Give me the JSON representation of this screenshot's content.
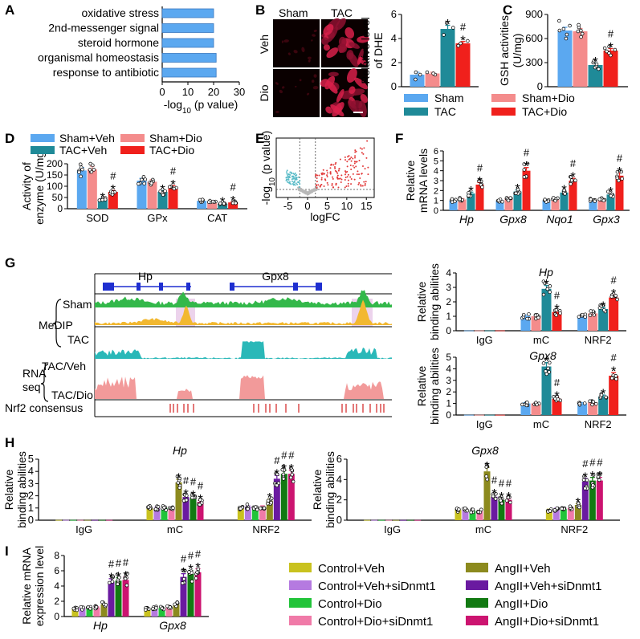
{
  "colors": {
    "sham": "#5ba8f0",
    "tac": "#1f8a98",
    "sham_dio": "#f48c8c",
    "tac_dio": "#f0201c",
    "ctrl_veh": "#c9c21f",
    "ctrl_veh_si": "#b57ae0",
    "ctrl_dio": "#22c43a",
    "ctrl_dio_si": "#f07aa8",
    "ang_veh": "#8c8a1e",
    "ang_veh_si": "#6a1aa0",
    "ang_dio": "#127a12",
    "ang_dio_si": "#cc1470",
    "medip_sham": "#33b84a",
    "medip_tac": "#f2b830",
    "rna_veh": "#2ab8b8",
    "rna_dio": "#f29a9a",
    "nrf2": "#d22020",
    "gene": "#1f2fd0",
    "highlight": "#ecd3ec"
  },
  "panels": {
    "A": "A",
    "B": "B",
    "C": "C",
    "D": "D",
    "E": "E",
    "F": "F",
    "G": "G",
    "H": "H",
    "I": "I"
  },
  "sig": {
    "star": "*",
    "hash": "#"
  },
  "chart_data": [
    {
      "id": "A",
      "type": "bar",
      "orientation": "horizontal",
      "categories": [
        "oxidative stress",
        "2nd-messenger signal",
        "steroid hormone",
        "organismal homeostasis",
        "response to antibiotic"
      ],
      "values": [
        20,
        20,
        20,
        21,
        21
      ],
      "xlabel_pre": "-log",
      "xlabel_sub": "10",
      "xlabel_post": " (p value)",
      "xlim": [
        0,
        30
      ],
      "xticks": [
        "0",
        "10",
        "20",
        "30"
      ]
    },
    {
      "id": "B_images",
      "type": "image_grid",
      "col_labels": [
        "Sham",
        "TAC"
      ],
      "row_labels": [
        "Veh",
        "Dio"
      ]
    },
    {
      "id": "B",
      "type": "bar",
      "ylabel": [
        "Relative level",
        "of DHE"
      ],
      "ylim": [
        0,
        6
      ],
      "yticks": [
        "0",
        "2",
        "4",
        "6"
      ],
      "series": [
        {
          "name": "Sham",
          "value": 1.0,
          "sem": 0.2,
          "points": [
            0.6,
            1.0,
            1.2
          ],
          "sig": []
        },
        {
          "name": "Sham+Dio",
          "value": 1.1,
          "sem": 0.1,
          "points": [
            1.0,
            1.1,
            1.2
          ],
          "sig": []
        },
        {
          "name": "TAC",
          "value": 4.8,
          "sem": 0.3,
          "points": [
            4.3,
            4.9,
            5.3
          ],
          "sig": [
            "*"
          ]
        },
        {
          "name": "TAC+Dio",
          "value": 3.6,
          "sem": 0.15,
          "points": [
            3.4,
            3.6,
            3.8
          ],
          "sig": [
            "#",
            "*"
          ]
        }
      ]
    },
    {
      "id": "C",
      "type": "bar",
      "ylabel": [
        "GSH activities",
        "(U/mg)"
      ],
      "ylim": [
        0,
        900
      ],
      "yticks": [
        "0",
        "300",
        "600",
        "900"
      ],
      "series": [
        {
          "name": "Sham",
          "value": 700,
          "sem": 40,
          "points": [
            600,
            650,
            700,
            720,
            760,
            820
          ],
          "sig": []
        },
        {
          "name": "Sham+Dio",
          "value": 690,
          "sem": 35,
          "points": [
            620,
            660,
            690,
            700,
            740,
            770
          ],
          "sig": []
        },
        {
          "name": "TAC",
          "value": 270,
          "sem": 25,
          "points": [
            220,
            240,
            260,
            280,
            300,
            320
          ],
          "sig": [
            "*"
          ]
        },
        {
          "name": "TAC+Dio",
          "value": 450,
          "sem": 25,
          "points": [
            390,
            420,
            440,
            460,
            480,
            500
          ],
          "sig": [
            "#",
            "*"
          ]
        }
      ]
    },
    {
      "id": "BC_legend",
      "type": "legend",
      "entries": [
        {
          "label": "Sham",
          "color": "sham"
        },
        {
          "label": "Sham+Dio",
          "color": "sham_dio"
        },
        {
          "label": "TAC",
          "color": "tac"
        },
        {
          "label": "TAC+Dio",
          "color": "tac_dio"
        }
      ]
    },
    {
      "id": "D",
      "type": "bar",
      "ylabel": [
        "Activity of",
        "enzyme (U/mg)"
      ],
      "ylim": [
        0,
        200
      ],
      "yticks": [
        "0",
        "50",
        "100",
        "150",
        "200"
      ],
      "legend": [
        {
          "label": "Sham+Veh",
          "color": "sham"
        },
        {
          "label": "Sham+Dio",
          "color": "sham_dio"
        },
        {
          "label": "TAC+Veh",
          "color": "tac"
        },
        {
          "label": "TAC+Dio",
          "color": "tac_dio"
        }
      ],
      "categories": [
        "SOD",
        "GPx",
        "CAT"
      ],
      "series": [
        {
          "name": "Sham+Veh",
          "values": [
            170,
            125,
            35
          ],
          "sig": [
            [],
            [],
            []
          ]
        },
        {
          "name": "Sham+Dio",
          "values": [
            175,
            120,
            33
          ],
          "sig": [
            [],
            [],
            []
          ]
        },
        {
          "name": "TAC+Veh",
          "values": [
            42,
            75,
            22
          ],
          "sig": [
            [
              "*"
            ],
            [
              "*"
            ],
            [
              "*"
            ]
          ]
        },
        {
          "name": "TAC+Dio",
          "values": [
            75,
            95,
            28
          ],
          "sig": [
            [
              "#",
              "*"
            ],
            [
              "#",
              "*"
            ],
            [
              "#",
              "*"
            ]
          ]
        }
      ]
    },
    {
      "id": "E",
      "type": "scatter",
      "subtype": "volcano",
      "xlabel": "logFC",
      "ylabel_pre": "-log",
      "ylabel_sub": "10",
      "ylabel_post": " (p value)",
      "xlim": [
        -8,
        17
      ],
      "xticks": [
        "-5",
        "0",
        "5",
        "10",
        "15"
      ]
    },
    {
      "id": "F",
      "type": "bar",
      "ylabel": [
        "Relative",
        "mRNA levels"
      ],
      "ylim": [
        0,
        6
      ],
      "yticks": [
        "0",
        "1",
        "2",
        "3",
        "4",
        "5",
        "6"
      ],
      "categories": [
        "Hp",
        "Gpx8",
        "Nqo1",
        "Gpx3"
      ],
      "series": [
        {
          "name": "Sham+Veh",
          "values": [
            1.0,
            1.0,
            1.0,
            1.0
          ],
          "sig": [
            [],
            [],
            [],
            []
          ]
        },
        {
          "name": "Sham+Dio",
          "values": [
            1.1,
            1.2,
            1.1,
            1.1
          ],
          "sig": [
            [],
            [],
            [],
            []
          ]
        },
        {
          "name": "TAC+Veh",
          "values": [
            1.7,
            1.9,
            1.8,
            1.6
          ],
          "sig": [
            [
              "*"
            ],
            [
              "*"
            ],
            [
              "*"
            ],
            [
              "*"
            ]
          ]
        },
        {
          "name": "TAC+Dio",
          "values": [
            2.6,
            4.0,
            3.0,
            3.5
          ],
          "sig": [
            [
              "#",
              "*"
            ],
            [
              "#",
              "*"
            ],
            [
              "#",
              "*"
            ],
            [
              "#",
              "*"
            ]
          ]
        }
      ]
    },
    {
      "id": "G_track",
      "type": "genome_track",
      "genes": [
        "Hp",
        "Gpx8"
      ],
      "tracks": [
        "Sham",
        "TAC",
        "TAC/Veh",
        "TAC/Dio"
      ],
      "group_labels": [
        "MeDIP",
        "RNA",
        "seq"
      ],
      "consensus_label": "Nrf2 consensus"
    },
    {
      "id": "G_Hp",
      "type": "bar",
      "title": "Hp",
      "ylabel": [
        "Relative",
        "binding abilities"
      ],
      "ylim": [
        0,
        4
      ],
      "yticks": [
        "0",
        "1",
        "2",
        "3",
        "4"
      ],
      "categories": [
        "IgG",
        "mC",
        "NRF2"
      ],
      "series": [
        {
          "name": "Sham+Veh",
          "values": [
            0.02,
            1.0,
            1.0
          ],
          "sig": [
            [],
            [],
            []
          ]
        },
        {
          "name": "Sham+Dio",
          "values": [
            0.02,
            1.0,
            1.2
          ],
          "sig": [
            [],
            [],
            []
          ]
        },
        {
          "name": "TAC+Veh",
          "values": [
            0.02,
            2.9,
            1.5
          ],
          "sig": [
            [],
            [
              "*"
            ],
            [
              "*"
            ]
          ]
        },
        {
          "name": "TAC+Dio",
          "values": [
            0.02,
            1.3,
            2.3
          ],
          "sig": [
            [],
            [
              "#",
              "*"
            ],
            [
              "#",
              "*"
            ]
          ]
        }
      ]
    },
    {
      "id": "G_Gpx8",
      "type": "bar",
      "title": "Gpx8",
      "ylabel": [
        "Relative",
        "binding abilities"
      ],
      "ylim": [
        0,
        5
      ],
      "yticks": [
        "0",
        "1",
        "2",
        "3",
        "4",
        "5"
      ],
      "categories": [
        "IgG",
        "mC",
        "NRF2"
      ],
      "series": [
        {
          "name": "Sham+Veh",
          "values": [
            0.02,
            1.0,
            1.0
          ],
          "sig": [
            [],
            [],
            []
          ]
        },
        {
          "name": "Sham+Dio",
          "values": [
            0.02,
            1.0,
            1.1
          ],
          "sig": [
            [],
            [],
            []
          ]
        },
        {
          "name": "TAC+Veh",
          "values": [
            0.02,
            4.2,
            1.6
          ],
          "sig": [
            [],
            [
              "*"
            ],
            [
              "*"
            ]
          ]
        },
        {
          "name": "TAC+Dio",
          "values": [
            0.02,
            1.4,
            3.4
          ],
          "sig": [
            [],
            [
              "#",
              "*"
            ],
            [
              "#",
              "*"
            ]
          ]
        }
      ]
    },
    {
      "id": "H_Hp",
      "type": "bar",
      "title": "Hp",
      "ylabel": [
        "Relative",
        "binding abilities"
      ],
      "ylim": [
        0,
        5
      ],
      "yticks": [
        "0",
        "1",
        "2",
        "3",
        "4",
        "5"
      ],
      "categories": [
        "IgG",
        "mC",
        "NRF2"
      ],
      "series": [
        {
          "name": "Control+Veh",
          "values": [
            0.02,
            1.0,
            1.0
          ],
          "sig": [
            [],
            [],
            []
          ]
        },
        {
          "name": "Control+Veh+siDnmt1",
          "values": [
            0.02,
            1.0,
            1.1
          ],
          "sig": [
            [],
            [],
            []
          ]
        },
        {
          "name": "Control+Dio",
          "values": [
            0.02,
            1.0,
            1.0
          ],
          "sig": [
            [],
            [],
            []
          ]
        },
        {
          "name": "Control+Dio+siDnmt1",
          "values": [
            0.02,
            0.9,
            1.1
          ],
          "sig": [
            [],
            [],
            []
          ]
        },
        {
          "name": "AngII+Veh",
          "values": [
            0.02,
            3.1,
            1.6
          ],
          "sig": [
            [],
            [
              "*"
            ],
            [
              "*"
            ]
          ]
        },
        {
          "name": "AngII+Veh+siDnmt1",
          "values": [
            0.02,
            1.9,
            3.4
          ],
          "sig": [
            [],
            [
              "#",
              "*"
            ],
            [
              "#",
              "*"
            ]
          ]
        },
        {
          "name": "AngII+Dio",
          "values": [
            0.02,
            1.8,
            3.8
          ],
          "sig": [
            [],
            [
              "#",
              "*"
            ],
            [
              "#",
              "*"
            ]
          ]
        },
        {
          "name": "AngII+Dio+siDnmt1",
          "values": [
            0.02,
            1.5,
            3.8
          ],
          "sig": [
            [],
            [
              "#",
              "*"
            ],
            [
              "#",
              "*"
            ]
          ]
        }
      ]
    },
    {
      "id": "H_Gpx8",
      "type": "bar",
      "title": "Gpx8",
      "ylabel": [
        "Relative",
        "binding abilities"
      ],
      "ylim": [
        0,
        6
      ],
      "yticks": [
        "0",
        "2",
        "4",
        "6"
      ],
      "categories": [
        "IgG",
        "mC",
        "NRF2"
      ],
      "series": [
        {
          "name": "Control+Veh",
          "values": [
            0.02,
            1.0,
            1.0
          ],
          "sig": [
            [],
            [],
            []
          ]
        },
        {
          "name": "Control+Veh+siDnmt1",
          "values": [
            0.02,
            1.0,
            1.1
          ],
          "sig": [
            [],
            [],
            []
          ]
        },
        {
          "name": "Control+Dio",
          "values": [
            0.02,
            0.9,
            1.1
          ],
          "sig": [
            [],
            [],
            []
          ]
        },
        {
          "name": "Control+Dio+siDnmt1",
          "values": [
            0.02,
            0.9,
            1.2
          ],
          "sig": [
            [],
            [],
            []
          ]
        },
        {
          "name": "AngII+Veh",
          "values": [
            0.02,
            4.8,
            1.5
          ],
          "sig": [
            [],
            [
              "*"
            ],
            [
              "*"
            ]
          ]
        },
        {
          "name": "AngII+Veh+siDnmt1",
          "values": [
            0.02,
            2.3,
            3.8
          ],
          "sig": [
            [],
            [
              "#",
              "*"
            ],
            [
              "#",
              "*"
            ]
          ]
        },
        {
          "name": "AngII+Dio",
          "values": [
            0.02,
            2.0,
            3.9
          ],
          "sig": [
            [],
            [
              "#",
              "*"
            ],
            [
              "#",
              "*"
            ]
          ]
        },
        {
          "name": "AngII+Dio+siDnmt1",
          "values": [
            0.02,
            2.0,
            3.9
          ],
          "sig": [
            [],
            [
              "#",
              "*"
            ],
            [
              "#",
              "*"
            ]
          ]
        }
      ]
    },
    {
      "id": "I",
      "type": "bar",
      "ylabel": [
        "Relative mRNA",
        "expression level"
      ],
      "ylim": [
        0,
        8
      ],
      "yticks": [
        "0",
        "2",
        "4",
        "6",
        "8"
      ],
      "categories": [
        "Hp",
        "Gpx8"
      ],
      "series": [
        {
          "name": "Control+Veh",
          "values": [
            1.0,
            1.0
          ],
          "sig": [
            [],
            []
          ]
        },
        {
          "name": "Control+Veh+siDnmt1",
          "values": [
            1.1,
            1.1
          ],
          "sig": [
            [],
            []
          ]
        },
        {
          "name": "Control+Dio",
          "values": [
            1.1,
            1.1
          ],
          "sig": [
            [],
            []
          ]
        },
        {
          "name": "Control+Dio+siDnmt1",
          "values": [
            1.2,
            1.2
          ],
          "sig": [
            [],
            []
          ]
        },
        {
          "name": "AngII+Veh",
          "values": [
            1.6,
            1.6
          ],
          "sig": [
            [],
            []
          ]
        },
        {
          "name": "AngII+Veh+siDnmt1",
          "values": [
            4.6,
            5.2
          ],
          "sig": [
            [
              "#",
              "*"
            ],
            [
              "#",
              "*"
            ]
          ]
        },
        {
          "name": "AngII+Dio",
          "values": [
            4.7,
            5.6
          ],
          "sig": [
            [
              "#",
              "*"
            ],
            [
              "#",
              "*"
            ]
          ]
        },
        {
          "name": "AngII+Dio+siDnmt1",
          "values": [
            4.8,
            5.8
          ],
          "sig": [
            [
              "#",
              "*"
            ],
            [
              "#",
              "*"
            ]
          ]
        }
      ]
    },
    {
      "id": "HI_legend",
      "type": "legend",
      "entries": [
        {
          "label": "Control+Veh",
          "color": "ctrl_veh"
        },
        {
          "label": "AngII+Veh",
          "color": "ang_veh"
        },
        {
          "label": "Control+Veh+siDnmt1",
          "color": "ctrl_veh_si"
        },
        {
          "label": "AngII+Veh+siDnmt1",
          "color": "ang_veh_si"
        },
        {
          "label": "Control+Dio",
          "color": "ctrl_dio"
        },
        {
          "label": "AngII+Dio",
          "color": "ang_dio"
        },
        {
          "label": "Control+Dio+siDnmt1",
          "color": "ctrl_dio_si"
        },
        {
          "label": "AngII+Dio+siDnmt1",
          "color": "ang_dio_si"
        }
      ]
    }
  ]
}
